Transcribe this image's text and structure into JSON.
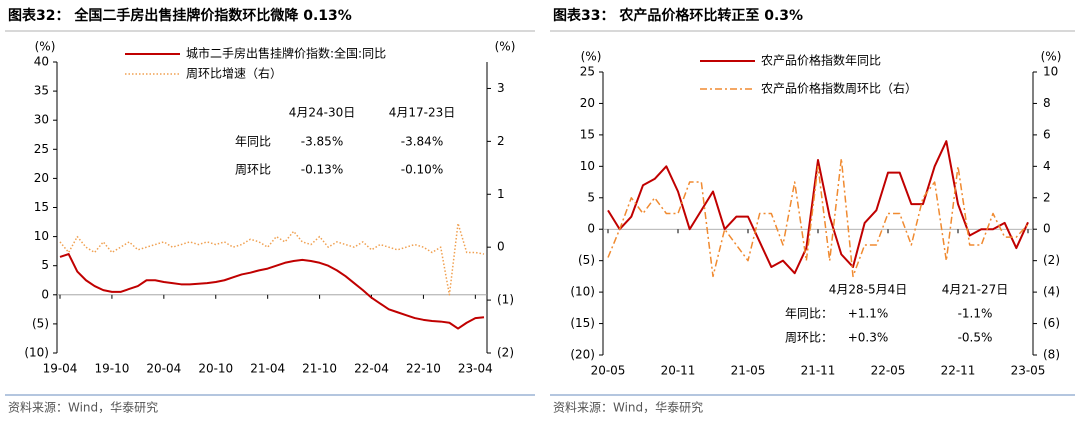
{
  "chart_data": [
    {
      "type": "line",
      "title": "图表32： 全国二手房出售挂牌价指数环比微降 0.13%",
      "y_label": "(%)",
      "y2_label": "(%)",
      "x": [
        "19-04",
        "19-05",
        "19-06",
        "19-07",
        "19-08",
        "19-09",
        "19-10",
        "19-11",
        "19-12",
        "20-01",
        "20-02",
        "20-03",
        "20-04",
        "20-05",
        "20-06",
        "20-07",
        "20-08",
        "20-09",
        "20-10",
        "20-11",
        "20-12",
        "21-01",
        "21-02",
        "21-03",
        "21-04",
        "21-05",
        "21-06",
        "21-07",
        "21-08",
        "21-09",
        "21-10",
        "21-11",
        "21-12",
        "22-01",
        "22-02",
        "22-03",
        "22-04",
        "22-05",
        "22-06",
        "22-07",
        "22-08",
        "22-09",
        "22-10",
        "22-11",
        "22-12",
        "23-01",
        "23-02",
        "23-03",
        "23-04",
        "23-05"
      ],
      "xticks": [
        "19-04",
        "19-10",
        "20-04",
        "20-10",
        "21-04",
        "21-10",
        "22-04",
        "22-10",
        "23-04"
      ],
      "ylim": [
        -10,
        40
      ],
      "yticks": [
        40,
        35,
        30,
        25,
        20,
        15,
        10,
        5,
        0,
        {
          "value": -5,
          "label": "(5)"
        },
        {
          "value": -10,
          "label": "(10)"
        }
      ],
      "y2lim": [
        -2,
        3.5
      ],
      "y2ticks": [
        3,
        2,
        1,
        0,
        {
          "value": -1,
          "label": "(1)"
        },
        {
          "value": -2,
          "label": "(2)"
        }
      ],
      "series": [
        {
          "name": "城市二手房出售挂牌价指数:全国:同比",
          "color": "#c00000",
          "style": "solid",
          "values": [
            6.5,
            7,
            4,
            2.5,
            1.5,
            0.8,
            0.5,
            0.5,
            1,
            1.5,
            2.5,
            2.5,
            2.2,
            2,
            1.8,
            1.8,
            1.9,
            2,
            2.2,
            2.5,
            3,
            3.5,
            3.8,
            4.2,
            4.5,
            5,
            5.5,
            5.8,
            6,
            5.8,
            5.5,
            5,
            4.2,
            3.2,
            2,
            0.8,
            -0.5,
            -1.5,
            -2.5,
            -3,
            -3.5,
            -4,
            -4.3,
            -4.5,
            -4.6,
            -4.8,
            -5.8,
            -4.8,
            -4,
            -3.85
          ]
        },
        {
          "name": "周环比增速（右）",
          "color": "#f0a050",
          "style": "dotted",
          "axis": "y2",
          "values": [
            0.1,
            -0.1,
            0.2,
            0.0,
            -0.1,
            0.1,
            -0.1,
            0.0,
            0.1,
            -0.05,
            0.0,
            0.05,
            0.1,
            0.0,
            0.05,
            0.1,
            0.05,
            0.1,
            0.05,
            0.1,
            0.0,
            0.05,
            0.15,
            0.1,
            0.0,
            0.2,
            0.1,
            0.3,
            0.1,
            0.05,
            0.2,
            0.0,
            0.1,
            0.05,
            0.0,
            0.1,
            -0.05,
            0.05,
            0.0,
            -0.05,
            0.0,
            0.05,
            0.0,
            -0.1,
            0.0,
            -0.9,
            0.45,
            -0.1,
            -0.1,
            -0.13
          ]
        }
      ],
      "annotation": {
        "columns": [
          "4月24-30日",
          "4月17-23日"
        ],
        "rows": [
          [
            "年同比",
            "-3.85%",
            "-3.84%"
          ],
          [
            "周环比",
            "-0.13%",
            "-0.10%"
          ]
        ]
      },
      "source": "资料来源：Wind，华泰研究"
    },
    {
      "type": "line",
      "title": "图表33： 农产品价格环比转正至 0.3%",
      "y_label": "(%)",
      "y2_label": "(%)",
      "x": [
        "20-05",
        "20-06",
        "20-07",
        "20-08",
        "20-09",
        "20-10",
        "20-11",
        "20-12",
        "21-01",
        "21-02",
        "21-03",
        "21-04",
        "21-05",
        "21-06",
        "21-07",
        "21-08",
        "21-09",
        "21-10",
        "21-11",
        "21-12",
        "22-01",
        "22-02",
        "22-03",
        "22-04",
        "22-05",
        "22-06",
        "22-07",
        "22-08",
        "22-09",
        "22-10",
        "22-11",
        "22-12",
        "23-01",
        "23-02",
        "23-03",
        "23-04",
        "23-05"
      ],
      "xticks": [
        "20-05",
        "20-11",
        "21-05",
        "21-11",
        "22-05",
        "22-11",
        "23-05"
      ],
      "ylim": [
        -20,
        25
      ],
      "yticks": [
        25,
        20,
        15,
        10,
        5,
        0,
        {
          "value": -5,
          "label": "(5)"
        },
        {
          "value": -10,
          "label": "(10)"
        },
        {
          "value": -15,
          "label": "(15)"
        },
        {
          "value": -20,
          "label": "(20)"
        }
      ],
      "y2lim": [
        -8,
        10
      ],
      "y2ticks": [
        10,
        8,
        6,
        4,
        2,
        0,
        {
          "value": -2,
          "label": "(2)"
        },
        {
          "value": -4,
          "label": "(4)"
        },
        {
          "value": -6,
          "label": "(6)"
        },
        {
          "value": -8,
          "label": "(8)"
        }
      ],
      "series": [
        {
          "name": "农产品价格指数年同比",
          "color": "#c00000",
          "style": "solid",
          "values": [
            3,
            0,
            2,
            7,
            8,
            10,
            6,
            0,
            3,
            6,
            0,
            2,
            2,
            -2,
            -6,
            -5,
            -7,
            -3,
            11,
            2,
            -4,
            -6,
            1,
            3,
            9,
            9,
            4,
            4,
            10,
            14,
            4,
            -1,
            0,
            0,
            1,
            -3,
            1.1
          ]
        },
        {
          "name": "农产品价格指数周环比（右）",
          "color": "#f08a30",
          "style": "dash-dot",
          "axis": "y2",
          "values": [
            -1.8,
            0,
            2,
            1,
            2,
            1,
            1,
            3,
            3,
            -3,
            0,
            -1,
            -2,
            1,
            1,
            -1,
            3,
            -2,
            4,
            -2,
            4.5,
            -3,
            -1,
            -1,
            1,
            1,
            -1,
            2,
            3,
            -2,
            4,
            -1,
            -1,
            1,
            -0.5,
            -0.5,
            0.3
          ]
        }
      ],
      "annotation": {
        "columns": [
          "4月28-5月4日",
          "4月21-27日"
        ],
        "rows": [
          [
            "年同比：",
            "+1.1%",
            "-1.1%"
          ],
          [
            "周环比：",
            "+0.3%",
            "-0.5%"
          ]
        ]
      },
      "source": "资料来源：Wind，华泰研究"
    }
  ]
}
